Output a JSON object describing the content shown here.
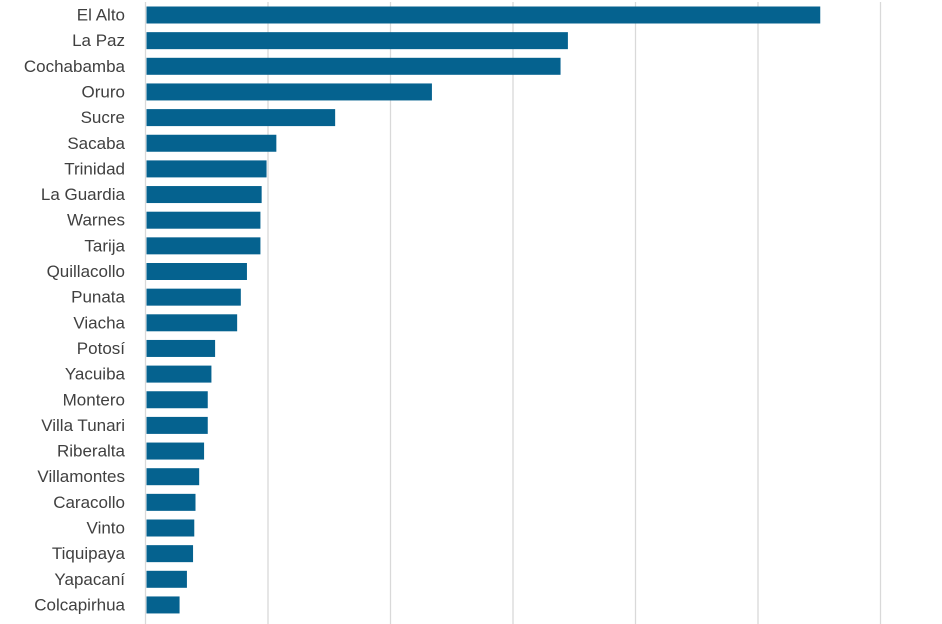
{
  "chart_data": {
    "type": "bar",
    "orientation": "horizontal",
    "categories": [
      "El Alto",
      "La Paz",
      "Cochabamba",
      "Oruro",
      "Sucre",
      "Sacaba",
      "Trinidad",
      "La Guardia",
      "Warnes",
      "Tarija",
      "Quillacollo",
      "Punata",
      "Viacha",
      "Potosí",
      "Yacuiba",
      "Montero",
      "Villa Tunari",
      "Riberalta",
      "Villamontes",
      "Caracollo",
      "Vinto",
      "Tiquipaya",
      "Yapacaní",
      "Colcapirhua"
    ],
    "values": [
      275,
      172,
      169,
      116.5,
      77,
      53,
      49,
      47,
      46.5,
      46.5,
      41,
      38.5,
      37,
      28,
      26.5,
      25,
      25,
      23.5,
      21.5,
      20,
      19.5,
      19,
      16.5,
      13.5
    ],
    "title": "",
    "xlabel": "",
    "ylabel": "",
    "xlim": [
      0,
      300
    ],
    "gridlines": "vertical",
    "tick_labels_visible": false,
    "bar_color": "#05628F",
    "grid_color": "#D9D9D9"
  }
}
